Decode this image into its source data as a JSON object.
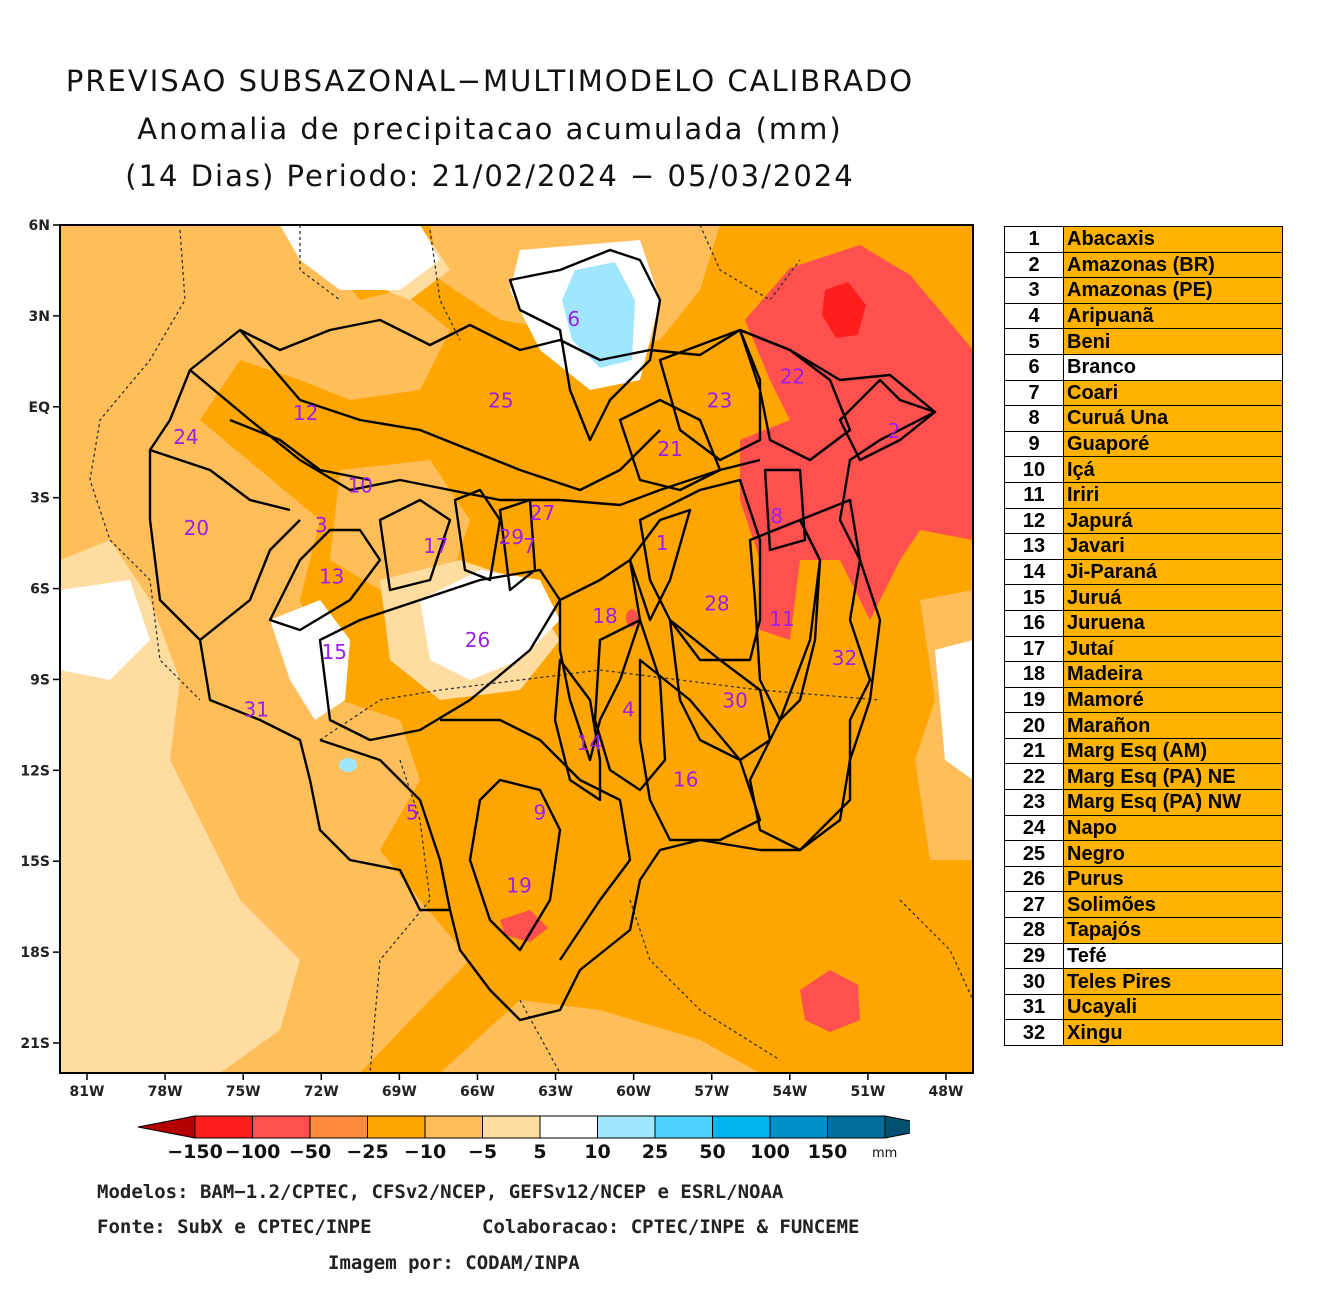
{
  "title": {
    "line1": "PREVISAO SUBSAZONAL−MULTIMODELO CALIBRADO",
    "line2": "Anomalia de precipitacao acumulada (mm)",
    "line3": "(14 Dias) Periodo: 21/02/2024 − 05/03/2024"
  },
  "map": {
    "lat_ticks": [
      "6N",
      "3N",
      "EQ",
      "3S",
      "6S",
      "9S",
      "12S",
      "15S",
      "18S",
      "21S"
    ],
    "lon_ticks": [
      "81W",
      "78W",
      "75W",
      "72W",
      "69W",
      "66W",
      "63W",
      "60W",
      "57W",
      "54W",
      "51W",
      "48W"
    ],
    "basin_labels": [
      {
        "id": "1",
        "lon": -58.9,
        "lat": -4.5
      },
      {
        "id": "2",
        "lon": -50.0,
        "lat": -0.8
      },
      {
        "id": "3",
        "lon": -72.0,
        "lat": -3.9
      },
      {
        "id": "4",
        "lon": -60.2,
        "lat": -10.0
      },
      {
        "id": "5",
        "lon": -68.5,
        "lat": -13.4
      },
      {
        "id": "6",
        "lon": -62.3,
        "lat": 2.9
      },
      {
        "id": "7",
        "lon": -64.0,
        "lat": -4.6
      },
      {
        "id": "8",
        "lon": -54.5,
        "lat": -3.6
      },
      {
        "id": "9",
        "lon": -63.6,
        "lat": -13.4
      },
      {
        "id": "10",
        "lon": -70.5,
        "lat": -2.6
      },
      {
        "id": "11",
        "lon": -54.3,
        "lat": -7.0
      },
      {
        "id": "12",
        "lon": -72.6,
        "lat": -0.2
      },
      {
        "id": "13",
        "lon": -71.6,
        "lat": -5.6
      },
      {
        "id": "14",
        "lon": -61.7,
        "lat": -11.1
      },
      {
        "id": "15",
        "lon": -71.5,
        "lat": -8.1
      },
      {
        "id": "16",
        "lon": -58.0,
        "lat": -12.3
      },
      {
        "id": "17",
        "lon": -67.6,
        "lat": -4.6
      },
      {
        "id": "18",
        "lon": -61.1,
        "lat": -6.9
      },
      {
        "id": "19",
        "lon": -64.4,
        "lat": -15.8
      },
      {
        "id": "20",
        "lon": -76.8,
        "lat": -4.0
      },
      {
        "id": "21",
        "lon": -58.6,
        "lat": -1.4
      },
      {
        "id": "22",
        "lon": -53.9,
        "lat": 1.0
      },
      {
        "id": "23",
        "lon": -56.7,
        "lat": 0.2
      },
      {
        "id": "24",
        "lon": -77.2,
        "lat": -1.0
      },
      {
        "id": "25",
        "lon": -65.1,
        "lat": 0.2
      },
      {
        "id": "26",
        "lon": -66.0,
        "lat": -7.7
      },
      {
        "id": "27",
        "lon": -63.5,
        "lat": -3.5
      },
      {
        "id": "28",
        "lon": -56.8,
        "lat": -6.5
      },
      {
        "id": "29",
        "lon": -64.7,
        "lat": -4.3
      },
      {
        "id": "30",
        "lon": -56.1,
        "lat": -9.7
      },
      {
        "id": "31",
        "lon": -74.5,
        "lat": -10.0
      },
      {
        "id": "32",
        "lon": -51.9,
        "lat": -8.3
      }
    ]
  },
  "basins": [
    {
      "num": "1",
      "name": "Abacaxis",
      "color": "#FFB300"
    },
    {
      "num": "2",
      "name": "Amazonas (BR)",
      "color": "#FFB300"
    },
    {
      "num": "3",
      "name": "Amazonas (PE)",
      "color": "#FFB300"
    },
    {
      "num": "4",
      "name": "Aripuanã",
      "color": "#FFB300"
    },
    {
      "num": "5",
      "name": "Beni",
      "color": "#FFB300"
    },
    {
      "num": "6",
      "name": "Branco",
      "color": "#FFFFFF"
    },
    {
      "num": "7",
      "name": "Coari",
      "color": "#FFB300"
    },
    {
      "num": "8",
      "name": "Curuá Una",
      "color": "#FFB300"
    },
    {
      "num": "9",
      "name": "Guaporé",
      "color": "#FFB300"
    },
    {
      "num": "10",
      "name": "Içá",
      "color": "#FFB300"
    },
    {
      "num": "11",
      "name": "Iriri",
      "color": "#FFB300"
    },
    {
      "num": "12",
      "name": "Japurá",
      "color": "#FFB300"
    },
    {
      "num": "13",
      "name": "Javari",
      "color": "#FFB300"
    },
    {
      "num": "14",
      "name": "Ji-Paraná",
      "color": "#FFB300"
    },
    {
      "num": "15",
      "name": "Juruá",
      "color": "#FFB300"
    },
    {
      "num": "16",
      "name": "Juruena",
      "color": "#FFB300"
    },
    {
      "num": "17",
      "name": "Jutaí",
      "color": "#FFB300"
    },
    {
      "num": "18",
      "name": "Madeira",
      "color": "#FFB300"
    },
    {
      "num": "19",
      "name": "Mamoré",
      "color": "#FFB300"
    },
    {
      "num": "20",
      "name": "Marañon",
      "color": "#FFB300"
    },
    {
      "num": "21",
      "name": "Marg Esq (AM)",
      "color": "#FFB300"
    },
    {
      "num": "22",
      "name": "Marg Esq (PA) NE",
      "color": "#FFB300"
    },
    {
      "num": "23",
      "name": "Marg Esq (PA) NW",
      "color": "#FFB300"
    },
    {
      "num": "24",
      "name": "Napo",
      "color": "#FFB300"
    },
    {
      "num": "25",
      "name": "Negro",
      "color": "#FFB300"
    },
    {
      "num": "26",
      "name": "Purus",
      "color": "#FFB300"
    },
    {
      "num": "27",
      "name": "Solimões",
      "color": "#FFB300"
    },
    {
      "num": "28",
      "name": "Tapajós",
      "color": "#FFB300"
    },
    {
      "num": "29",
      "name": "Tefé",
      "color": "#FFFFFF"
    },
    {
      "num": "30",
      "name": "Teles Pires",
      "color": "#FFB300"
    },
    {
      "num": "31",
      "name": "Ucayali",
      "color": "#FFB300"
    },
    {
      "num": "32",
      "name": "Xingu",
      "color": "#FFB300"
    }
  ],
  "colorbar": {
    "labels": [
      "−150",
      "−100",
      "−50",
      "−25",
      "−10",
      "−5",
      "5",
      "10",
      "25",
      "50",
      "100",
      "150"
    ],
    "unit": "mm",
    "colors": [
      "#b40000",
      "#ff1e1e",
      "#ff5050",
      "#ff8c3c",
      "#ffa500",
      "#ffbe5a",
      "#ffdca0",
      "#ffffff",
      "#a0e6ff",
      "#50d2ff",
      "#00b4f0",
      "#0091c8",
      "#006e9b",
      "#00506e"
    ]
  },
  "colors": {
    "anom_m25_m50": "#FFA500",
    "anom_m10_m25": "#FFBE5A",
    "anom_m5_m10": "#FFDCA0",
    "anom_m50_m100": "#FF5050",
    "anom_m100_m150": "#FF1E1E",
    "anom_p5_p10": "#A0E6FF",
    "basin_label": "#9B1FE8"
  },
  "footer": {
    "models": "Modelos: BAM−1.2/CPTEC, CFSv2/NCEP, GEFSv12/NCEP e ESRL/NOAA",
    "source": "Fonte: SubX e CPTEC/INPE",
    "collab": "Colaboracao: CPTEC/INPE & FUNCEME",
    "image_by": "Imagem por: CODAM/INPA"
  }
}
